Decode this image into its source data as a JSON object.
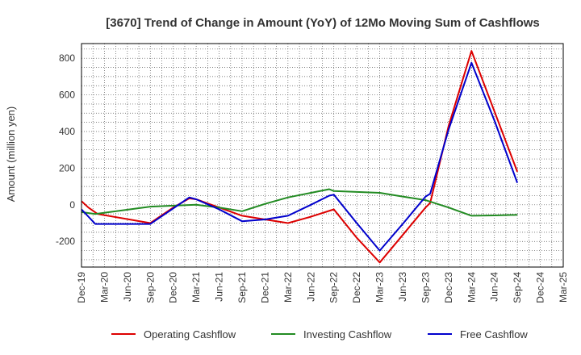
{
  "chart_data": {
    "type": "line",
    "title": "[3670]  Trend of Change in Amount (YoY) of 12Mo Moving Sum of Cashflows",
    "xlabel": "",
    "ylabel": "Amount (million yen)",
    "ylim": [
      -340,
      880
    ],
    "yticks": [
      -200,
      0,
      200,
      400,
      600,
      800
    ],
    "grid": true,
    "legend_position": "bottom",
    "categories": [
      "Dec-19",
      "Mar-20",
      "Jun-20",
      "Sep-20",
      "Dec-20",
      "Mar-21",
      "Jun-21",
      "Sep-21",
      "Dec-21",
      "Mar-22",
      "Jun-22",
      "Sep-22",
      "Dec-22",
      "Mar-23",
      "Jun-23",
      "Sep-23",
      "Dec-23",
      "Mar-24",
      "Jun-24",
      "Sep-24",
      "Dec-24",
      "Mar-25"
    ],
    "series": [
      {
        "name": "Operating Cashflow",
        "color": "#dd0000",
        "points": [
          [
            0,
            20
          ],
          [
            0.3,
            -15
          ],
          [
            0.7,
            -50
          ],
          [
            3,
            -100
          ],
          [
            4,
            -15
          ],
          [
            4.7,
            35
          ],
          [
            5,
            30
          ],
          [
            6,
            -15
          ],
          [
            7,
            -60
          ],
          [
            8,
            -80
          ],
          [
            9,
            -100
          ],
          [
            10,
            -65
          ],
          [
            11,
            -25
          ],
          [
            12,
            -180
          ],
          [
            13,
            -315
          ],
          [
            14,
            -165
          ],
          [
            15,
            -15
          ],
          [
            15.2,
            10
          ],
          [
            16,
            430
          ],
          [
            17,
            840
          ],
          [
            18,
            510
          ],
          [
            19,
            180
          ]
        ]
      },
      {
        "name": "Investing Cashflow",
        "color": "#228b22",
        "points": [
          [
            0,
            -40
          ],
          [
            0.6,
            -50
          ],
          [
            3,
            -10
          ],
          [
            4,
            -5
          ],
          [
            5,
            0
          ],
          [
            6,
            -15
          ],
          [
            7,
            -35
          ],
          [
            8,
            5
          ],
          [
            9,
            40
          ],
          [
            10,
            65
          ],
          [
            10.8,
            85
          ],
          [
            11,
            75
          ],
          [
            12,
            70
          ],
          [
            13,
            65
          ],
          [
            14,
            45
          ],
          [
            15,
            25
          ],
          [
            16,
            -15
          ],
          [
            17,
            -60
          ],
          [
            18,
            -58
          ],
          [
            19,
            -55
          ]
        ]
      },
      {
        "name": "Free Cashflow",
        "color": "#0000cc",
        "points": [
          [
            0,
            -25
          ],
          [
            0.6,
            -105
          ],
          [
            3,
            -105
          ],
          [
            4,
            -20
          ],
          [
            4.7,
            40
          ],
          [
            5,
            30
          ],
          [
            6,
            -25
          ],
          [
            7,
            -90
          ],
          [
            8,
            -80
          ],
          [
            9,
            -60
          ],
          [
            10,
            0
          ],
          [
            10.8,
            50
          ],
          [
            11,
            55
          ],
          [
            12,
            -100
          ],
          [
            13,
            -250
          ],
          [
            14,
            -105
          ],
          [
            15,
            45
          ],
          [
            15.2,
            60
          ],
          [
            16,
            410
          ],
          [
            17,
            775
          ],
          [
            18,
            460
          ],
          [
            19,
            120
          ]
        ]
      }
    ]
  }
}
